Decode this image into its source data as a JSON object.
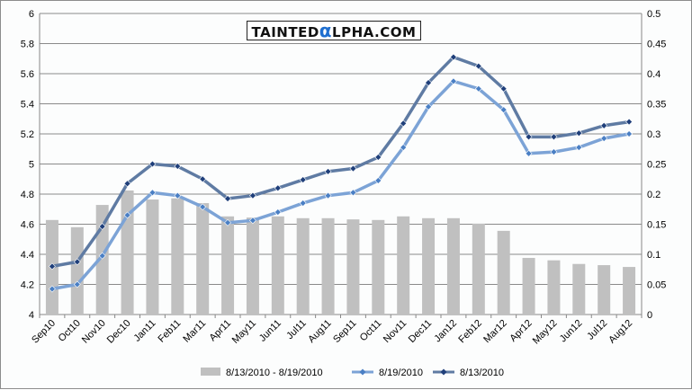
{
  "logo": {
    "text": "TAINTEDαLPHA.COM",
    "pre": "TAINTED",
    "alpha": "α",
    "post": "LPHA.COM"
  },
  "chart_data": {
    "type": "bar+line",
    "title": "",
    "categories": [
      "Sep10",
      "Oct10",
      "Nov10",
      "Dec10",
      "Jan11",
      "Feb11",
      "Mar11",
      "Apr11",
      "May11",
      "Jun11",
      "Jul11",
      "Aug11",
      "Sep11",
      "Oct11",
      "Nov11",
      "Dec11",
      "Jan12",
      "Feb12",
      "Mar12",
      "Apr12",
      "May12",
      "Jun12",
      "Jul12",
      "Aug12"
    ],
    "y_left": {
      "range": [
        4,
        6
      ],
      "ticks": [
        "4",
        "4.2",
        "4.4",
        "4.6",
        "4.8",
        "5",
        "5.2",
        "5.4",
        "5.6",
        "5.8",
        "6"
      ]
    },
    "y_right": {
      "range": [
        0,
        0.5
      ],
      "ticks": [
        "0",
        "0.05",
        "0.1",
        "0.15",
        "0.2",
        "0.25",
        "0.3",
        "0.35",
        "0.4",
        "0.45",
        "0.5"
      ]
    },
    "grid": true,
    "legend_position": "bottom",
    "series": [
      {
        "name": "8/13/2010 - 8/19/2010",
        "type": "bar",
        "axis": "right",
        "color": "#c0c0c0",
        "values": [
          0.157,
          0.145,
          0.182,
          0.206,
          0.191,
          0.193,
          0.185,
          0.163,
          0.161,
          0.163,
          0.16,
          0.16,
          0.158,
          0.157,
          0.163,
          0.16,
          0.16,
          0.151,
          0.139,
          0.094,
          0.09,
          0.084,
          0.082,
          0.079
        ]
      },
      {
        "name": "8/19/2010",
        "type": "line",
        "axis": "left",
        "color": "#7ca3d6",
        "marker": "#4a7fc4",
        "values": [
          4.17,
          4.2,
          4.39,
          4.66,
          4.81,
          4.79,
          4.715,
          4.61,
          4.625,
          4.68,
          4.74,
          4.79,
          4.81,
          4.89,
          5.11,
          5.38,
          5.55,
          5.5,
          5.36,
          5.07,
          5.08,
          5.11,
          5.17,
          5.2
        ]
      },
      {
        "name": "8/13/2010",
        "type": "line",
        "axis": "left",
        "color": "#5f7ba3",
        "marker": "#1f3f7a",
        "values": [
          4.32,
          4.35,
          4.585,
          4.87,
          5.0,
          4.985,
          4.9,
          4.77,
          4.79,
          4.84,
          4.895,
          4.95,
          4.97,
          5.045,
          5.27,
          5.54,
          5.71,
          5.65,
          5.5,
          5.18,
          5.18,
          5.205,
          5.255,
          5.28
        ]
      }
    ]
  }
}
